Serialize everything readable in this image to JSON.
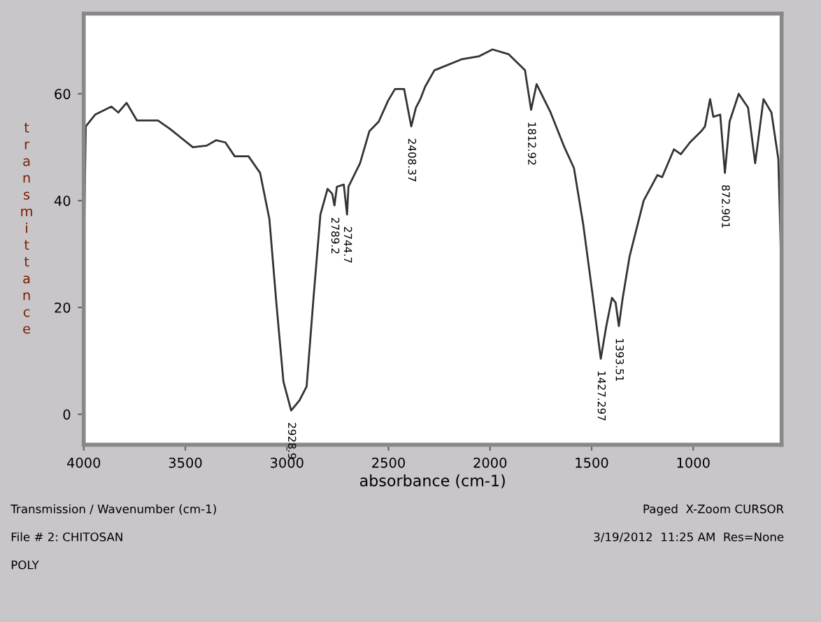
{
  "chart_data": {
    "type": "line",
    "xlabel": "absorbance (cm-1)",
    "ylabel": "transmittance",
    "xlim": [
      4000,
      565
    ],
    "ylim": [
      -5.7,
      75
    ],
    "xticks": [
      4000,
      3500,
      3000,
      2500,
      2000,
      1500,
      1000
    ],
    "yticks": [
      0,
      20,
      40,
      60
    ],
    "grid": false,
    "legend": false,
    "marker": "none",
    "line_style": "solid",
    "series": [
      {
        "color": "#333333",
        "x": [
          4000,
          3990,
          3944,
          3864,
          3830,
          3789,
          3738,
          3635,
          3578,
          3463,
          3395,
          3349,
          3303,
          3257,
          3189,
          3132,
          3086,
          3052,
          3017,
          2979,
          2938,
          2903,
          2869,
          2835,
          2800,
          2777,
          2766,
          2754,
          2720,
          2704,
          2697,
          2640,
          2594,
          2548,
          2502,
          2468,
          2423,
          2388,
          2365,
          2342,
          2320,
          2274,
          2137,
          2056,
          1988,
          1908,
          1828,
          1798,
          1771,
          1702,
          1634,
          1587,
          1542,
          1496,
          1455,
          1428,
          1400,
          1382,
          1366,
          1347,
          1313,
          1244,
          1176,
          1153,
          1095,
          1061,
          1016,
          958,
          942,
          917,
          901,
          867,
          844,
          821,
          776,
          730,
          695,
          654,
          615,
          581,
          565
        ],
        "values": [
          29.5,
          53.9,
          56.1,
          57.6,
          56.5,
          58.3,
          55,
          55,
          53.5,
          50,
          50.3,
          51.3,
          50.9,
          48.3,
          48.3,
          45.2,
          36.5,
          20.9,
          6.1,
          0.7,
          2.6,
          5.2,
          21.8,
          37.4,
          42.2,
          41.3,
          39.1,
          42.6,
          43,
          37.4,
          42.6,
          47,
          53,
          54.8,
          58.7,
          60.9,
          60.9,
          53.9,
          57.4,
          59.1,
          61.3,
          64.4,
          66.5,
          67,
          68.3,
          67.4,
          64.4,
          57,
          61.8,
          56.5,
          50,
          46.1,
          35.7,
          22.6,
          10.4,
          16.5,
          21.8,
          20.9,
          16.5,
          21.8,
          29.6,
          40,
          44.8,
          44.4,
          49.6,
          48.7,
          50.9,
          53.1,
          53.9,
          59,
          55.7,
          56.1,
          45.2,
          54.8,
          60,
          57.4,
          47,
          59,
          56.5,
          47.8,
          25.2
        ]
      }
    ],
    "annotations": [
      {
        "text": "2928.9",
        "x": 2979,
        "y": 0.7
      },
      {
        "text": "2789.2",
        "x": 2766,
        "y": 39.1
      },
      {
        "text": "2744.7",
        "x": 2704,
        "y": 37.4
      },
      {
        "text": "2408.37",
        "x": 2388,
        "y": 53.9
      },
      {
        "text": "1812.92",
        "x": 1798,
        "y": 57
      },
      {
        "text": "1427.297",
        "x": 1455,
        "y": 10.4
      },
      {
        "text": "1393.51",
        "x": 1366,
        "y": 16.5
      },
      {
        "text": "872.901",
        "x": 844,
        "y": 45.2
      },
      "Transmission / Wavenumber (cm-1)",
      "File # 2: CHITOSAN",
      "POLY",
      "Paged  X-Zoom CURSOR",
      "3/19/2012  11:25 AM  Res=None"
    ]
  }
}
